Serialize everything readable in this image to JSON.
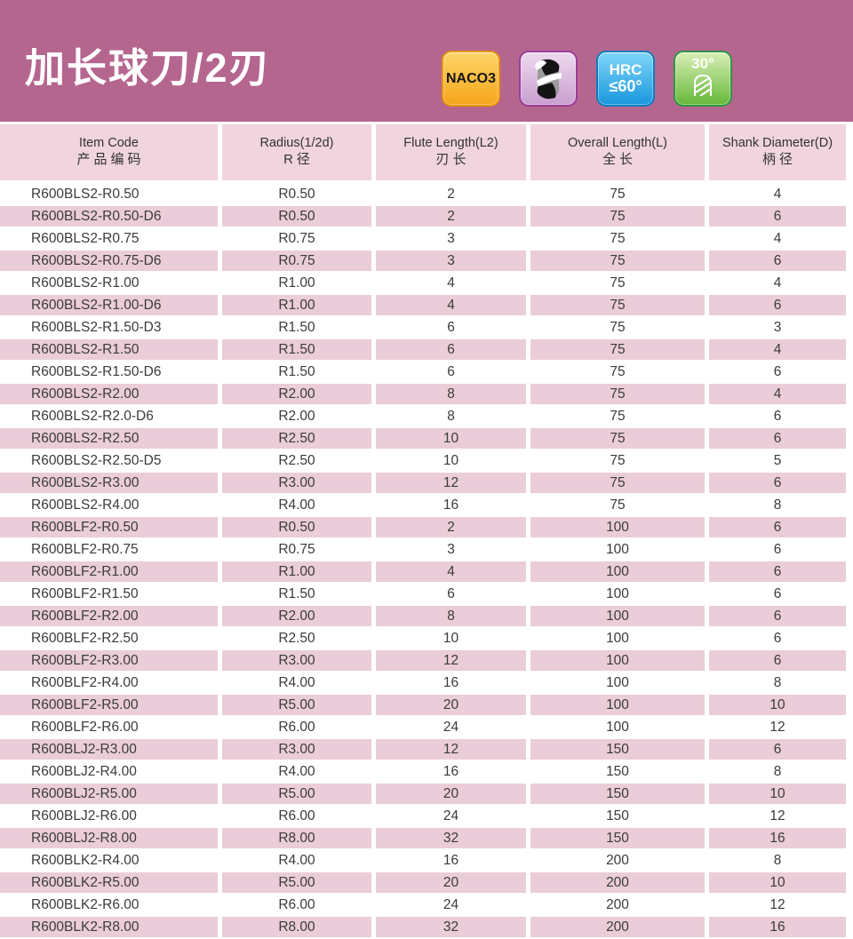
{
  "page": {
    "title": "加长球刀/2刃",
    "badges": {
      "coating": {
        "label": "NACO3"
      },
      "tool_type": {
        "icon": "ball-end-mill-2-flute"
      },
      "hardness": {
        "line1": "HRC",
        "line2": "≤60°"
      },
      "helix": {
        "label": "30°",
        "icon": "helix-flute"
      }
    },
    "colors": {
      "band": "#b5668e",
      "header_pink": "#f0d4de",
      "row_pink": "#eacdd8",
      "badge_orange": "#f6a51c",
      "badge_purple": "#9c3c9a",
      "badge_blue": "#1997dd",
      "badge_green": "#2e9644"
    }
  },
  "table": {
    "columns": [
      {
        "en": "Item Code",
        "zh": "产品编码"
      },
      {
        "en": "Radius(1/2d)",
        "zh": "R径"
      },
      {
        "en": "Flute Length(L2)",
        "zh": "刃长"
      },
      {
        "en": "Overall Length(L)",
        "zh": "全长"
      },
      {
        "en": "Shank Diameter(D)",
        "zh": "柄径"
      }
    ],
    "rows": [
      [
        "R600BLS2-R0.50",
        "R0.50",
        "2",
        "75",
        "4"
      ],
      [
        "R600BLS2-R0.50-D6",
        "R0.50",
        "2",
        "75",
        "6"
      ],
      [
        "R600BLS2-R0.75",
        "R0.75",
        "3",
        "75",
        "4"
      ],
      [
        "R600BLS2-R0.75-D6",
        "R0.75",
        "3",
        "75",
        "6"
      ],
      [
        "R600BLS2-R1.00",
        "R1.00",
        "4",
        "75",
        "4"
      ],
      [
        "R600BLS2-R1.00-D6",
        "R1.00",
        "4",
        "75",
        "6"
      ],
      [
        "R600BLS2-R1.50-D3",
        "R1.50",
        "6",
        "75",
        "3"
      ],
      [
        "R600BLS2-R1.50",
        "R1.50",
        "6",
        "75",
        "4"
      ],
      [
        "R600BLS2-R1.50-D6",
        "R1.50",
        "6",
        "75",
        "6"
      ],
      [
        "R600BLS2-R2.00",
        "R2.00",
        "8",
        "75",
        "4"
      ],
      [
        "R600BLS2-R2.0-D6",
        "R2.00",
        "8",
        "75",
        "6"
      ],
      [
        "R600BLS2-R2.50",
        "R2.50",
        "10",
        "75",
        "6"
      ],
      [
        "R600BLS2-R2.50-D5",
        "R2.50",
        "10",
        "75",
        "5"
      ],
      [
        "R600BLS2-R3.00",
        "R3.00",
        "12",
        "75",
        "6"
      ],
      [
        "R600BLS2-R4.00",
        "R4.00",
        "16",
        "75",
        "8"
      ],
      [
        "R600BLF2-R0.50",
        "R0.50",
        "2",
        "100",
        "6"
      ],
      [
        "R600BLF2-R0.75",
        "R0.75",
        "3",
        "100",
        "6"
      ],
      [
        "R600BLF2-R1.00",
        "R1.00",
        "4",
        "100",
        "6"
      ],
      [
        "R600BLF2-R1.50",
        "R1.50",
        "6",
        "100",
        "6"
      ],
      [
        "R600BLF2-R2.00",
        "R2.00",
        "8",
        "100",
        "6"
      ],
      [
        "R600BLF2-R2.50",
        "R2.50",
        "10",
        "100",
        "6"
      ],
      [
        "R600BLF2-R3.00",
        "R3.00",
        "12",
        "100",
        "6"
      ],
      [
        "R600BLF2-R4.00",
        "R4.00",
        "16",
        "100",
        "8"
      ],
      [
        "R600BLF2-R5.00",
        "R5.00",
        "20",
        "100",
        "10"
      ],
      [
        "R600BLF2-R6.00",
        "R6.00",
        "24",
        "100",
        "12"
      ],
      [
        "R600BLJ2-R3.00",
        "R3.00",
        "12",
        "150",
        "6"
      ],
      [
        "R600BLJ2-R4.00",
        "R4.00",
        "16",
        "150",
        "8"
      ],
      [
        "R600BLJ2-R5.00",
        "R5.00",
        "20",
        "150",
        "10"
      ],
      [
        "R600BLJ2-R6.00",
        "R6.00",
        "24",
        "150",
        "12"
      ],
      [
        "R600BLJ2-R8.00",
        "R8.00",
        "32",
        "150",
        "16"
      ],
      [
        "R600BLK2-R4.00",
        "R4.00",
        "16",
        "200",
        "8"
      ],
      [
        "R600BLK2-R5.00",
        "R5.00",
        "20",
        "200",
        "10"
      ],
      [
        "R600BLK2-R6.00",
        "R6.00",
        "24",
        "200",
        "12"
      ],
      [
        "R600BLK2-R8.00",
        "R8.00",
        "32",
        "200",
        "16"
      ]
    ]
  }
}
